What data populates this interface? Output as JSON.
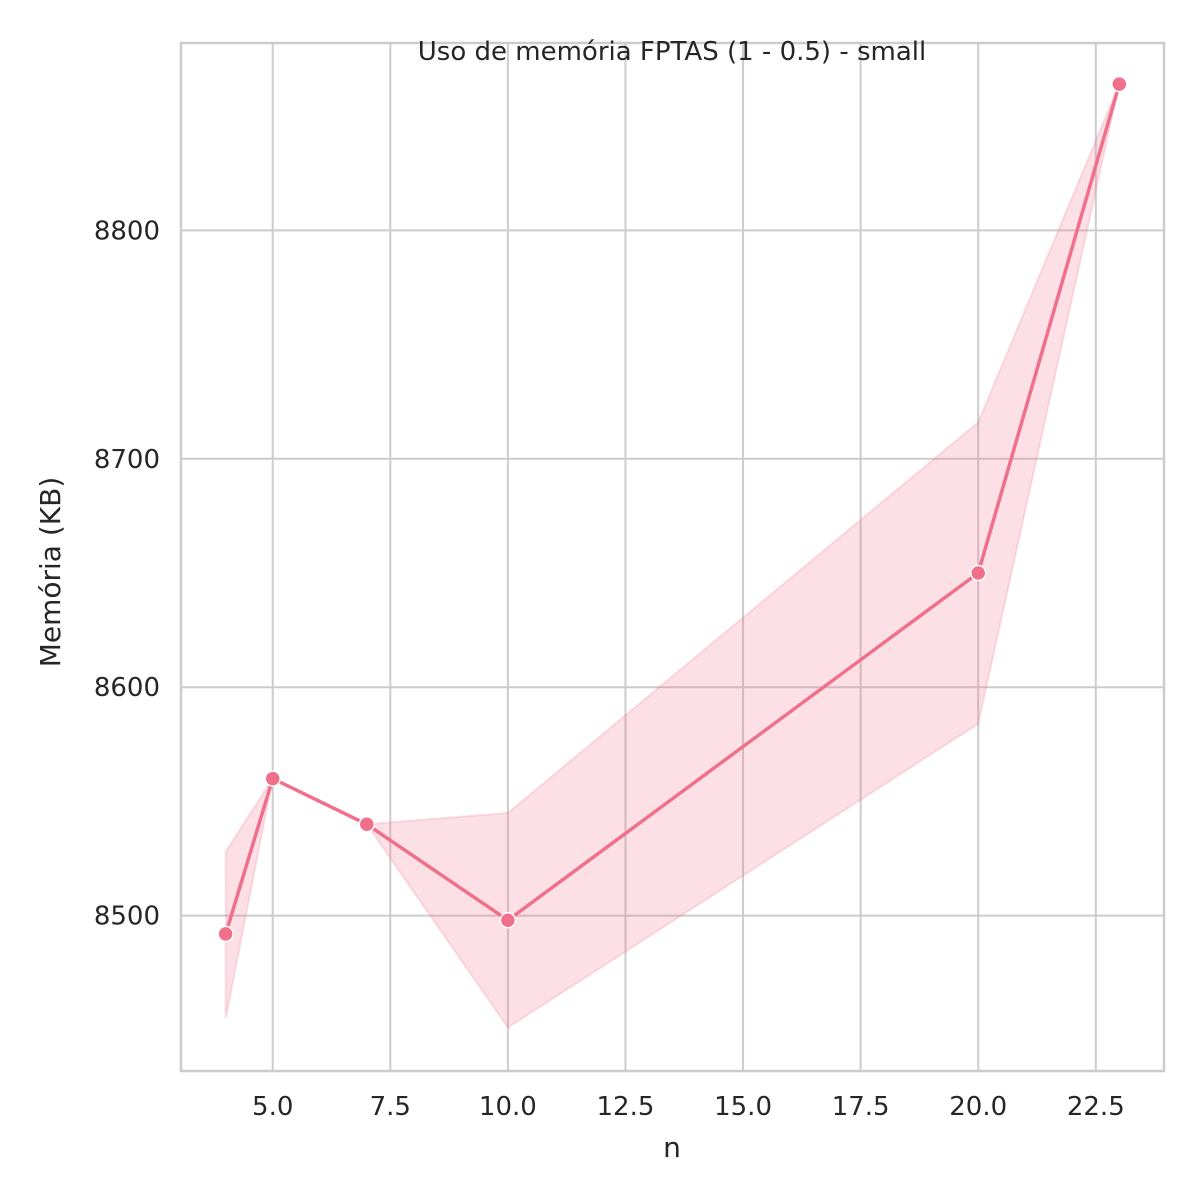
{
  "chart_data": {
    "type": "line",
    "title": "Uso de memória FPTAS (1 - 0.5) - small",
    "xlabel": "n",
    "ylabel": "Memória (KB)",
    "xlim": [
      3.05,
      23.95
    ],
    "ylim": [
      8432,
      8882
    ],
    "x_ticks": [
      5.0,
      7.5,
      10.0,
      12.5,
      15.0,
      17.5,
      20.0,
      22.5
    ],
    "x_tick_labels": [
      "5.0",
      "7.5",
      "10.0",
      "12.5",
      "15.0",
      "17.5",
      "20.0",
      "22.5"
    ],
    "y_ticks": [
      8500,
      8600,
      8700,
      8800
    ],
    "y_tick_labels": [
      "8500",
      "8600",
      "8700",
      "8800"
    ],
    "grid": true,
    "series": [
      {
        "color": "#f0708c",
        "x": [
          4,
          5,
          7,
          10,
          20,
          23
        ],
        "y": [
          8492,
          8560,
          8540,
          8498,
          8650,
          8864
        ],
        "ci_low": [
          8455,
          8560,
          8540,
          8451,
          8584,
          8864
        ],
        "ci_high": [
          8528,
          8560,
          8540,
          8545,
          8716,
          8864
        ]
      }
    ]
  }
}
